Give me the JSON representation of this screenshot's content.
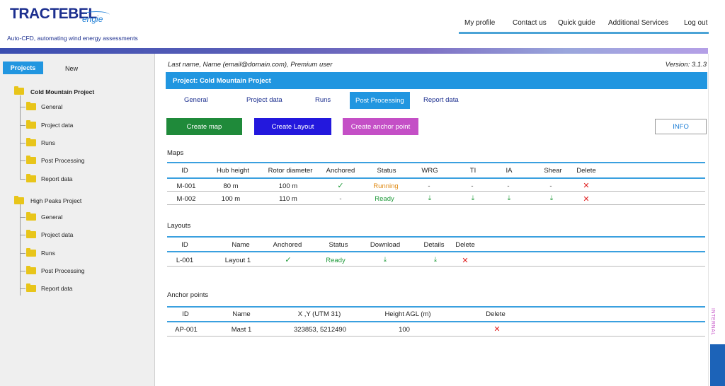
{
  "header": {
    "logo_main": "TRACTEBEL",
    "logo_sub": "engie",
    "tagline": "Auto-CFD, automating wind energy assessments",
    "nav": [
      "My profile",
      "Contact us",
      "Quick guide",
      "Additional Services",
      "Log out"
    ]
  },
  "sidebar": {
    "tab_projects": "Projects",
    "tab_new": "New",
    "projects": [
      {
        "name": "Cold Mountain Project",
        "items": [
          "General",
          "Project data",
          "Runs",
          "Post Processing",
          "Report data"
        ]
      },
      {
        "name": "High Peaks Project",
        "items": [
          "General",
          "Project data",
          "Runs",
          "Post Processing",
          "Report data"
        ]
      }
    ]
  },
  "main": {
    "user_line": "Last name, Name (email@domain.com), Premium user",
    "version": "Version: 3.1.3",
    "project_title": "Project: Cold Mountain Project",
    "subtabs": [
      "General",
      "Project data",
      "Runs",
      "Post Processing",
      "Report data"
    ],
    "active_subtab": "Post Processing",
    "buttons": {
      "create_map": "Create map",
      "create_layout": "Create Layout",
      "create_anchor": "Create anchor point",
      "info": "INFO"
    },
    "maps": {
      "title": "Maps",
      "headers": [
        "ID",
        "Hub height",
        "Rotor diameter",
        "Anchored",
        "Status",
        "WRG",
        "TI",
        "IA",
        "Shear",
        "Delete"
      ],
      "rows": [
        {
          "id": "M-001",
          "hub": "80 m",
          "rotor": "100 m",
          "anchored": "✓",
          "status": "Running",
          "wrg": "-",
          "ti": "-",
          "ia": "-",
          "shear": "-",
          "delete": "✕"
        },
        {
          "id": "M-002",
          "hub": "100 m",
          "rotor": "110 m",
          "anchored": "-",
          "status": "Ready",
          "wrg": "⤓",
          "ti": "⤓",
          "ia": "⤓",
          "shear": "⤓",
          "delete": "✕"
        }
      ]
    },
    "layouts": {
      "title": "Layouts",
      "headers": [
        "ID",
        "Name",
        "Anchored",
        "Status",
        "Download",
        "Details",
        "Delete"
      ],
      "rows": [
        {
          "id": "L-001",
          "name": "Layout 1",
          "anchored": "✓",
          "status": "Ready",
          "download": "⤓",
          "details": "⤓",
          "delete": "✕"
        }
      ]
    },
    "anchors": {
      "title": "Anchor points",
      "headers": [
        "ID",
        "Name",
        "X ,Y  (UTM 31)",
        "Height AGL (m)",
        "Delete"
      ],
      "rows": [
        {
          "id": "AP-001",
          "name": "Mast 1",
          "xy": "323853, 5212490",
          "height": "100",
          "delete": "✕"
        }
      ]
    }
  },
  "side_label": "INTERNAL",
  "colors": {
    "accent": "#2196e0",
    "create_map": "#1f8a3a",
    "create_layout": "#2318dd",
    "create_anchor": "#c44fc6",
    "ready": "#1f9a3a",
    "running": "#e08a14",
    "delete": "#e02020"
  }
}
